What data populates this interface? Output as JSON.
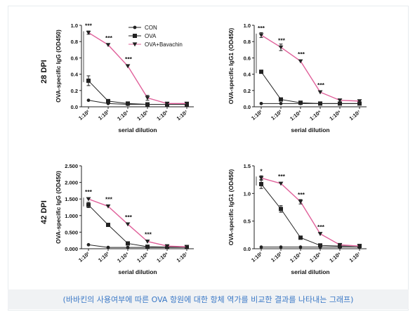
{
  "caption": "(바바킨의 사용여부에 따른 OVA 항원에 대한 항체 역가를 비교한 결과를 나타내는 그래프)",
  "row_labels": [
    "28 DPI",
    "42 DPI"
  ],
  "legend": {
    "entries": [
      {
        "label": "CON",
        "marker": "circle",
        "color": "#222222"
      },
      {
        "label": "OVA",
        "marker": "square",
        "color": "#222222"
      },
      {
        "label": "OVA+Bavachin",
        "marker": "triangle-down",
        "color": "#e0609a"
      }
    ]
  },
  "colors": {
    "con": "#222222",
    "ova": "#222222",
    "bavachin_line": "#e0609a",
    "bavachin_marker": "#222222",
    "caption": "#3a78c6"
  },
  "chart_data": [
    {
      "type": "line",
      "ylabel": "OVA-specific IgG (OD450)",
      "xlabel": "serial dilution",
      "categories": [
        "1:10²",
        "1:10³",
        "1:10⁴",
        "1:10⁵",
        "1:10⁶",
        "1:10⁷"
      ],
      "yticks": [
        "0.0",
        "0.2",
        "0.4",
        "0.6",
        "0.8",
        "1.0"
      ],
      "ylim": [
        0,
        1.0
      ],
      "series": [
        {
          "name": "CON",
          "values": [
            0.08,
            0.04,
            0.03,
            0.03,
            0.03,
            0.03
          ],
          "errors": [
            0,
            0,
            0,
            0,
            0,
            0
          ]
        },
        {
          "name": "OVA",
          "values": [
            0.32,
            0.07,
            0.04,
            0.03,
            0.03,
            0.03
          ],
          "errors": [
            0.06,
            0.01,
            0,
            0,
            0,
            0
          ]
        },
        {
          "name": "OVA+Bavachin",
          "values": [
            0.91,
            0.76,
            0.5,
            0.11,
            0.04,
            0.04
          ],
          "errors": [
            0.02,
            0,
            0,
            0.03,
            0.01,
            0
          ]
        }
      ],
      "annotations": [
        "***",
        "***",
        "***"
      ],
      "annotation_at": [
        0,
        1,
        2
      ],
      "legend": "top-right"
    },
    {
      "type": "line",
      "ylabel": "OVA-specific IgG1 (OD450)",
      "xlabel": "serial dilution",
      "categories": [
        "1:10²",
        "1:10³",
        "1:10⁴",
        "1:10⁵",
        "1:10⁶",
        "1:10⁷"
      ],
      "yticks": [
        "0.0",
        "0.2",
        "0.4",
        "0.6",
        "0.8",
        "1.0"
      ],
      "ylim": [
        0,
        1.0
      ],
      "series": [
        {
          "name": "CON",
          "values": [
            0.04,
            0.04,
            0.04,
            0.04,
            0.04,
            0.04
          ],
          "errors": [
            0,
            0,
            0,
            0,
            0,
            0
          ]
        },
        {
          "name": "OVA",
          "values": [
            0.43,
            0.09,
            0.05,
            0.04,
            0.04,
            0.04
          ],
          "errors": [
            0,
            0,
            0,
            0,
            0,
            0
          ]
        },
        {
          "name": "OVA+Bavachin",
          "values": [
            0.88,
            0.73,
            0.56,
            0.18,
            0.08,
            0.07
          ],
          "errors": [
            0.03,
            0.04,
            0,
            0,
            0,
            0
          ]
        }
      ],
      "annotations": [
        "***",
        "***",
        "***",
        "***"
      ],
      "annotation_at": [
        0,
        1,
        2,
        3
      ]
    },
    {
      "type": "line",
      "ylabel": "OVA-specific IgG (OD450)",
      "xlabel": "serial dilution",
      "categories": [
        "1:10²",
        "1:10³",
        "1:10⁴",
        "1:10⁵",
        "1:10⁶",
        "1:10⁷"
      ],
      "yticks": [
        "0.000",
        "0.500",
        "1.000",
        "1.500",
        "2.000",
        "2.500"
      ],
      "ylim": [
        0,
        2.5
      ],
      "series": [
        {
          "name": "CON",
          "values": [
            0.12,
            0.04,
            0.04,
            0.04,
            0.04,
            0.04
          ],
          "errors": [
            0,
            0,
            0,
            0,
            0,
            0
          ]
        },
        {
          "name": "OVA",
          "values": [
            1.32,
            0.72,
            0.16,
            0.06,
            0.05,
            0.05
          ],
          "errors": [
            0.08,
            0,
            0,
            0,
            0,
            0
          ]
        },
        {
          "name": "OVA+Bavachin",
          "values": [
            1.5,
            1.28,
            0.74,
            0.22,
            0.08,
            0.06
          ],
          "errors": [
            0,
            0,
            0,
            0,
            0,
            0
          ]
        }
      ],
      "annotations": [
        "***",
        "***",
        "***",
        "***"
      ],
      "annotation_at": [
        0,
        1,
        2,
        3
      ]
    },
    {
      "type": "line",
      "ylabel": "OVA-specific IgG1 (OD450)",
      "xlabel": "serial dilution",
      "categories": [
        "1:10²",
        "1:10³",
        "1:10⁴",
        "1:10⁵",
        "1:10⁶",
        "1:10⁷"
      ],
      "yticks": [
        "0.0",
        "0.5",
        "1.0",
        "1.5"
      ],
      "ylim": [
        0,
        1.5
      ],
      "series": [
        {
          "name": "CON",
          "values": [
            0.03,
            0.03,
            0.03,
            0.03,
            0.03,
            0.03
          ],
          "errors": [
            0,
            0,
            0,
            0,
            0,
            0
          ]
        },
        {
          "name": "OVA",
          "values": [
            1.17,
            0.72,
            0.2,
            0.06,
            0.05,
            0.05
          ],
          "errors": [
            0.08,
            0.06,
            0,
            0,
            0,
            0
          ]
        },
        {
          "name": "OVA+Bavachin",
          "values": [
            1.28,
            1.18,
            0.85,
            0.27,
            0.07,
            0.05
          ],
          "errors": [
            0.04,
            0,
            0.04,
            0,
            0,
            0
          ]
        }
      ],
      "annotations": [
        "*",
        "***",
        "***",
        "***"
      ],
      "annotation_at": [
        0,
        1,
        2,
        3
      ]
    }
  ]
}
